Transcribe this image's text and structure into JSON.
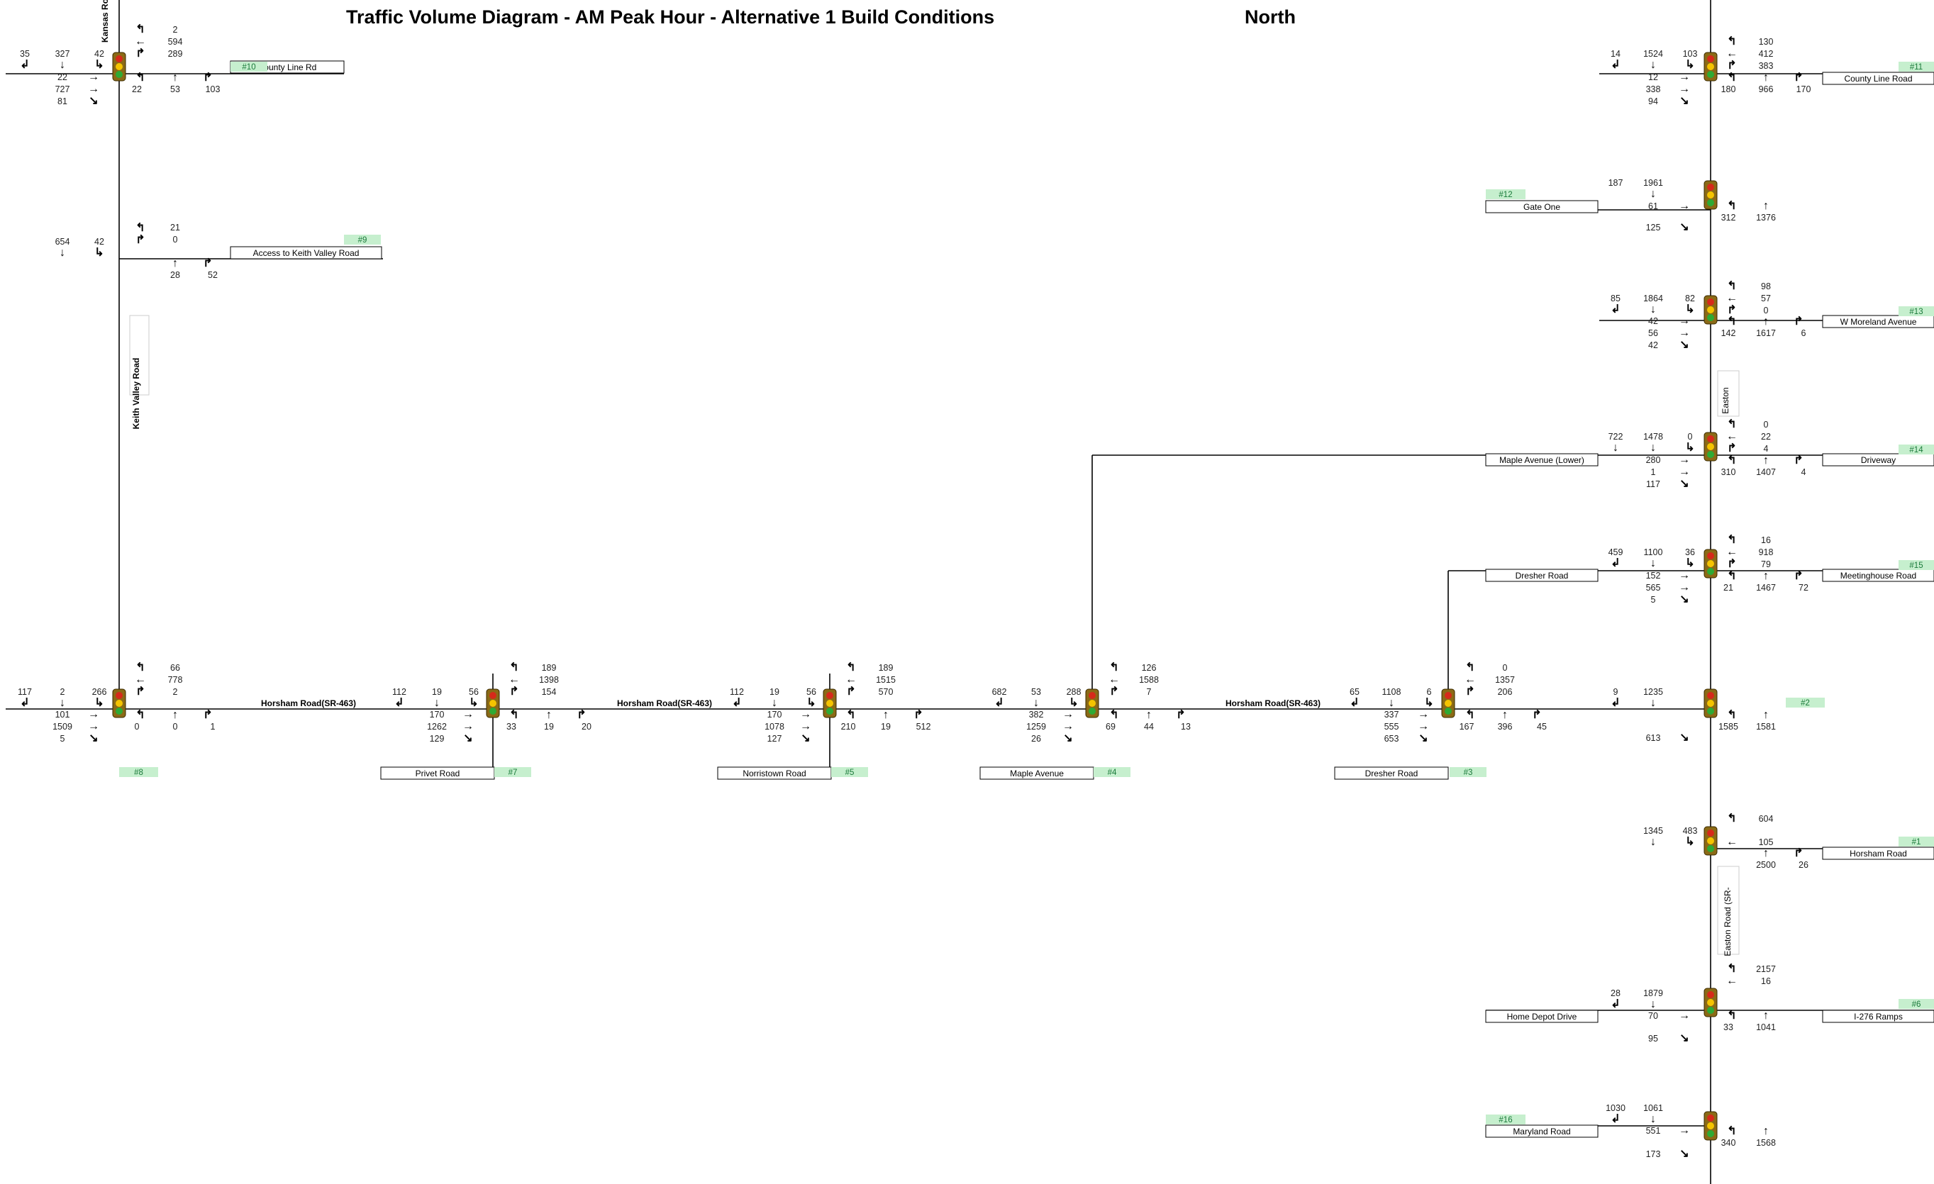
{
  "title": "Traffic Volume Diagram - AM Peak Hour - Alternative 1 Build Conditions",
  "compass": "North",
  "colors": {
    "tag_bg": "#c6efce",
    "tag_text": "#1a7a3a",
    "road": "#000000",
    "signal_body": "#8b6a16",
    "signal_red": "#d62a1a",
    "signal_yellow": "#f5c400",
    "signal_green": "#2eaa34"
  },
  "icons": {
    "signal": "traffic-signal-icon",
    "arrows": [
      "left-turn-arrow-icon",
      "through-arrow-icon",
      "right-turn-arrow-icon"
    ]
  },
  "roads": [
    {
      "label": "Horsham Road(SR-463)"
    },
    {
      "label": "Horsham Road(SR-463)"
    },
    {
      "label": "Horsham Road(SR-463)"
    },
    {
      "label": "Horsham Road(SR-463)"
    }
  ],
  "vertical_labels": [
    {
      "label": "Kansas Ro"
    },
    {
      "label": "Keith Valley Road"
    },
    {
      "label": "Easton"
    },
    {
      "label": "Easton Road (SR-"
    }
  ],
  "boxes": [
    {
      "label": "County Line Rd"
    },
    {
      "label": "Access to Keith Valley Road"
    },
    {
      "label": "County Line Road"
    },
    {
      "label": "Gate One"
    },
    {
      "label": "W Moreland Avenue"
    },
    {
      "label": "Maple Avenue (Lower)"
    },
    {
      "label": "Driveway"
    },
    {
      "label": "Dresher Road"
    },
    {
      "label": "Meetinghouse Road"
    },
    {
      "label": "Privet Road"
    },
    {
      "label": "Norristown Road"
    },
    {
      "label": "Maple Avenue"
    },
    {
      "label": "Dresher Road"
    },
    {
      "label": "Horsham Road"
    },
    {
      "label": "Home Depot Drive"
    },
    {
      "label": "I-276 Ramps"
    },
    {
      "label": "Maryland Road"
    }
  ],
  "tags": [
    {
      "label": "#10"
    },
    {
      "label": "#9"
    },
    {
      "label": "#11"
    },
    {
      "label": "#12"
    },
    {
      "label": "#13"
    },
    {
      "label": "#14"
    },
    {
      "label": "#15"
    },
    {
      "label": "#8"
    },
    {
      "label": "#7"
    },
    {
      "label": "#5"
    },
    {
      "label": "#4"
    },
    {
      "label": "#3"
    },
    {
      "label": "#2"
    },
    {
      "label": "#1"
    },
    {
      "label": "#6"
    },
    {
      "label": "#16"
    }
  ],
  "volumes": [
    "35",
    "327",
    "42",
    "22",
    "727",
    "81",
    "2",
    "594",
    "289",
    "22",
    "53",
    "103",
    "654",
    "42",
    "21",
    "0",
    "28",
    "52",
    "14",
    "1524",
    "103",
    "12",
    "338",
    "94",
    "130",
    "412",
    "383",
    "180",
    "966",
    "170",
    "187",
    "1961",
    "61",
    "125",
    "312",
    "1376",
    "85",
    "1864",
    "82",
    "42",
    "56",
    "42",
    "98",
    "57",
    "0",
    "142",
    "1617",
    "6",
    "722",
    "1478",
    "0",
    "280",
    "1",
    "117",
    "0",
    "22",
    "4",
    "310",
    "1407",
    "4",
    "459",
    "1100",
    "36",
    "152",
    "565",
    "5",
    "16",
    "918",
    "79",
    "21",
    "1467",
    "72",
    "117",
    "2",
    "266",
    "101",
    "1509",
    "5",
    "66",
    "778",
    "2",
    "0",
    "0",
    "1",
    "112",
    "19",
    "56",
    "170",
    "1262",
    "129",
    "189",
    "1398",
    "154",
    "33",
    "19",
    "20",
    "112",
    "19",
    "56",
    "170",
    "1078",
    "127",
    "189",
    "1515",
    "570",
    "210",
    "19",
    "512",
    "682",
    "53",
    "288",
    "382",
    "1259",
    "26",
    "126",
    "1588",
    "7",
    "69",
    "44",
    "13",
    "65",
    "1108",
    "6",
    "337",
    "555",
    "653",
    "0",
    "1357",
    "206",
    "167",
    "396",
    "45",
    "9",
    "1235",
    "613",
    "1585",
    "1581",
    "1345",
    "483",
    "604",
    "105",
    "2500",
    "26",
    "2157",
    "16",
    "28",
    "1879",
    "70",
    "95",
    "33",
    "1041",
    "1030",
    "1061",
    "551",
    "173",
    "340",
    "1568"
  ],
  "arrows": [
    "↲",
    "↓",
    "↳",
    "→",
    "→",
    "↘",
    "↰",
    "←",
    "↱",
    "↰",
    "↑",
    "↱",
    "↓",
    "↳",
    "↰",
    "↱",
    "↑",
    "↱",
    "↲",
    "↓",
    "↳",
    "→",
    "→",
    "↘",
    "↰",
    "←",
    "↱",
    "↰",
    "↑",
    "↱",
    "↓",
    "→",
    "↘",
    "↰",
    "↑",
    "↲",
    "↓",
    "↳",
    "→",
    "→",
    "↘",
    "↰",
    "←",
    "↱",
    "↰",
    "↑",
    "↱",
    "↓",
    "↓",
    "↳",
    "→",
    "→",
    "↘",
    "↰",
    "←",
    "↱",
    "↰",
    "↑",
    "↱",
    "↲",
    "↓",
    "↳",
    "→",
    "→",
    "↘",
    "↰",
    "←",
    "↱",
    "↰",
    "↑",
    "↱",
    "↲",
    "↓",
    "↳",
    "→",
    "→",
    "↘",
    "↰",
    "←",
    "↱",
    "↰",
    "↑",
    "↱",
    "↲",
    "↓",
    "↳",
    "→",
    "→",
    "↘",
    "↰",
    "←",
    "↱",
    "↰",
    "↑",
    "↱",
    "↲",
    "↓",
    "↳",
    "→",
    "→",
    "↘",
    "↰",
    "←",
    "↱",
    "↰",
    "↑",
    "↱",
    "↲",
    "↓",
    "↳",
    "→",
    "→",
    "↘",
    "↰",
    "←",
    "↱",
    "↰",
    "↑",
    "↱",
    "↲",
    "↓",
    "↳",
    "→",
    "→",
    "↘",
    "↰",
    "←",
    "↱",
    "↰",
    "↑",
    "↱",
    "↲",
    "↓",
    "↘",
    "↰",
    "↑",
    "↓",
    "↳",
    "↰",
    "←",
    "↑",
    "↱",
    "↰",
    "←",
    "↲",
    "↓",
    "→",
    "↘",
    "↰",
    "↑",
    "↲",
    "↓",
    "→",
    "↘",
    "↰",
    "↑"
  ]
}
